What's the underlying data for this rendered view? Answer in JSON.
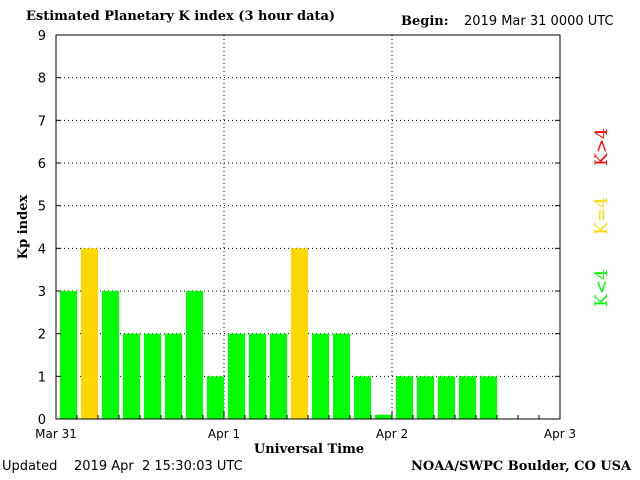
{
  "header": {
    "title": "Estimated Planetary K index (3 hour data)",
    "begin_label": "Begin:",
    "begin_value": "2019 Mar 31 0000 UTC"
  },
  "footer": {
    "updated_label": "Updated",
    "updated_value": "2019 Apr  2 15:30:03 UTC",
    "source": "NOAA/SWPC Boulder, CO USA"
  },
  "legend": [
    {
      "label": "K>4",
      "color": "#ff0000"
    },
    {
      "label": "K=4",
      "color": "#ffd700"
    },
    {
      "label": "K<4",
      "color": "#00ff00"
    }
  ],
  "chart_data": {
    "type": "bar",
    "title": "Estimated Planetary K index (3 hour data)",
    "xlabel": "Universal Time",
    "ylabel": "Kp index",
    "ylim": [
      0,
      9
    ],
    "yticks": [
      0,
      1,
      2,
      3,
      4,
      5,
      6,
      7,
      8,
      9
    ],
    "xticks": [
      "Mar 31",
      "Apr 1",
      "Apr 2",
      "Apr 3"
    ],
    "interval_hours": 3,
    "grid": true,
    "values": [
      3,
      4,
      3,
      2,
      2,
      2,
      3,
      1,
      2,
      2,
      2,
      4,
      2,
      2,
      1,
      0.1,
      1,
      1,
      1,
      1,
      1
    ],
    "colors": {
      "below": "#00ff00",
      "equal": "#ffd700",
      "above": "#ff0000"
    }
  }
}
